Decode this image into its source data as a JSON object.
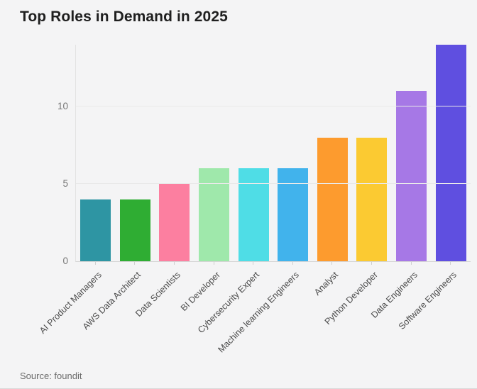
{
  "page": {
    "background_color": "#f4f4f5"
  },
  "chart_data": {
    "type": "bar",
    "title": "Top Roles in Demand in 2025",
    "source_label": "Source: foundit",
    "categories": [
      "AI Product Managers",
      "AWS Data Architect",
      "Data Scientists",
      "BI Developer",
      "Cybersecurity Expert",
      "Machine learning Engineers",
      "Analyst",
      "Python Developer",
      "Data Engineers",
      "Software Engineers"
    ],
    "values": [
      4,
      4,
      5,
      6,
      6,
      6,
      8,
      8,
      11,
      14
    ],
    "bar_colors": [
      "#2e95a3",
      "#2fad33",
      "#fc7fa0",
      "#9fe8ab",
      "#4fdde6",
      "#41b3ec",
      "#fd9b2e",
      "#fbca32",
      "#a678e6",
      "#5f4fe0"
    ],
    "xlabel": "",
    "ylabel": "",
    "ylim": [
      0,
      14
    ],
    "yticks": [
      0,
      5,
      10
    ],
    "grid": "horizontal",
    "legend_position": "none"
  }
}
